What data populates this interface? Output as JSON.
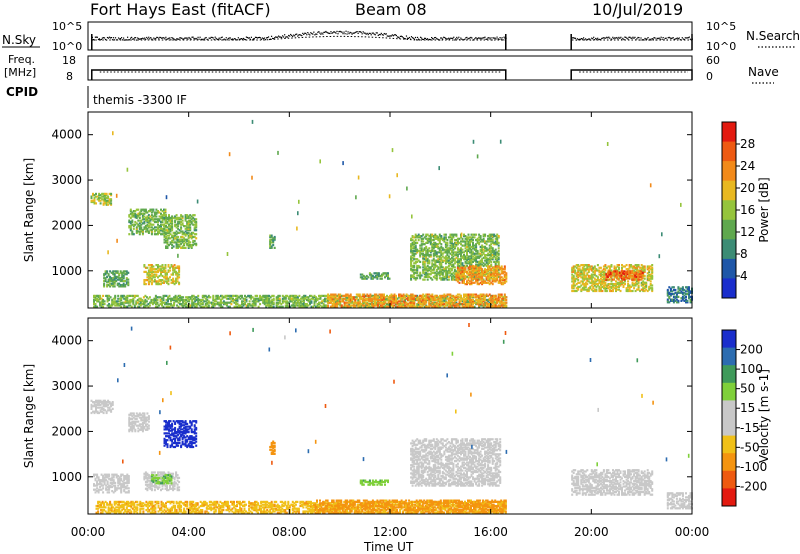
{
  "header": {
    "station": "Fort Hays East (fitACF)",
    "beam": "Beam 08",
    "date": "10/Jul/2019"
  },
  "panel_labels": {
    "nsky": "N.Sky",
    "freq_line1": "Freq.",
    "freq_line2": "[MHz]",
    "cpid": "CPID",
    "nsearch": "N.Search",
    "nave": "Nave",
    "mode": "themis -3300 IF"
  },
  "colors": {
    "power_scale": [
      "#1a2ecc",
      "#1f57a8",
      "#3c8c75",
      "#5fa84e",
      "#95c43c",
      "#e8b820",
      "#f28a1a",
      "#ee5a12",
      "#e31a10"
    ],
    "velocity_scale": [
      "#1a2ecc",
      "#2c6cb0",
      "#3f9a5a",
      "#7fd03a",
      "#c8c8c8",
      "#c8c8c8",
      "#f0c018",
      "#f49410",
      "#ee5a10",
      "#e31a10"
    ],
    "frame": "#000000"
  },
  "chart_data": [
    {
      "type": "line",
      "name": "noise-panel",
      "title": "",
      "ylabel": "N.Sky",
      "ylabel_right": "N.Search",
      "yticks": [
        "10^5",
        "10^0"
      ],
      "yticks_right": [
        "10^5",
        "10^0"
      ],
      "x_range_hours": [
        0,
        24
      ],
      "data_gaps_hours": [
        [
          16.6,
          19.2
        ]
      ]
    },
    {
      "type": "line",
      "name": "freq-nave-panel",
      "title": "",
      "ylabel": "Freq. [MHz]",
      "ylabel_right": "Nave",
      "yticks": [
        "18",
        "8"
      ],
      "yticks_right": [
        "60",
        "0"
      ],
      "x_range_hours": [
        0,
        24
      ],
      "data_gaps_hours": [
        [
          16.6,
          19.2
        ]
      ]
    },
    {
      "type": "heatmap",
      "name": "power",
      "ylabel": "Slant Range [km]",
      "colorbar_label": "Power [dB]",
      "colorbar_ticks": [
        "28",
        "24",
        "20",
        "16",
        "12",
        "8",
        "4"
      ],
      "colorbar_range": [
        0,
        32
      ],
      "yticks": [
        "4000",
        "3000",
        "2000",
        "1000"
      ],
      "ylim": [
        180,
        4500
      ],
      "x_range_hours": [
        0,
        24
      ],
      "regions": [
        {
          "t0": 0.1,
          "t1": 0.9,
          "r0": 2450,
          "r1": 2700,
          "v": 16
        },
        {
          "t0": 0.6,
          "t1": 1.6,
          "r0": 650,
          "r1": 1000,
          "v": 12
        },
        {
          "t0": 1.6,
          "t1": 3.1,
          "r0": 1800,
          "r1": 2350,
          "v": 14
        },
        {
          "t0": 2.2,
          "t1": 3.6,
          "r0": 700,
          "r1": 1150,
          "v": 18
        },
        {
          "t0": 3.0,
          "t1": 4.3,
          "r0": 1500,
          "r1": 2250,
          "v": 14
        },
        {
          "t0": 0.2,
          "t1": 16.6,
          "r0": 200,
          "r1": 450,
          "v": 14
        },
        {
          "t0": 9.5,
          "t1": 16.6,
          "r0": 200,
          "r1": 480,
          "v": 22
        },
        {
          "t0": 10.8,
          "t1": 12.0,
          "r0": 820,
          "r1": 950,
          "v": 12
        },
        {
          "t0": 12.8,
          "t1": 16.3,
          "r0": 800,
          "r1": 1800,
          "v": 14
        },
        {
          "t0": 14.6,
          "t1": 16.6,
          "r0": 700,
          "r1": 1100,
          "v": 22
        },
        {
          "t0": 19.2,
          "t1": 22.4,
          "r0": 550,
          "r1": 1150,
          "v": 18
        },
        {
          "t0": 20.5,
          "t1": 22.0,
          "r0": 800,
          "r1": 1000,
          "v": 26
        },
        {
          "t0": 23.0,
          "t1": 24.0,
          "r0": 300,
          "r1": 650,
          "v": 8
        },
        {
          "t0": 7.2,
          "t1": 7.4,
          "r0": 1500,
          "r1": 1800,
          "v": 12
        }
      ]
    },
    {
      "type": "heatmap",
      "name": "velocity",
      "ylabel": "Slant Range [km]",
      "colorbar_label": "Velocity [m s-1]",
      "colorbar_ticks": [
        "200",
        "100",
        "50",
        "15",
        "-15",
        "-50",
        "-100",
        "-200"
      ],
      "colorbar_range": [
        -250,
        250
      ],
      "yticks": [
        "4000",
        "3000",
        "2000",
        "1000"
      ],
      "ylim": [
        180,
        4500
      ],
      "x_range_hours": [
        0,
        24
      ],
      "regions": [
        {
          "t0": 0.1,
          "t1": 1.0,
          "r0": 2400,
          "r1": 2700,
          "v": 0
        },
        {
          "t0": 0.2,
          "t1": 1.6,
          "r0": 650,
          "r1": 1050,
          "v": 0
        },
        {
          "t0": 1.6,
          "t1": 2.4,
          "r0": 2000,
          "r1": 2400,
          "v": 0
        },
        {
          "t0": 3.0,
          "t1": 4.3,
          "r0": 1650,
          "r1": 2250,
          "v": 220
        },
        {
          "t0": 2.2,
          "t1": 3.6,
          "r0": 700,
          "r1": 1100,
          "v": 0
        },
        {
          "t0": 2.5,
          "t1": 3.3,
          "r0": 850,
          "r1": 1050,
          "v": 40
        },
        {
          "t0": 0.3,
          "t1": 16.6,
          "r0": 200,
          "r1": 460,
          "v": -40
        },
        {
          "t0": 9.0,
          "t1": 16.6,
          "r0": 200,
          "r1": 480,
          "v": -60
        },
        {
          "t0": 10.8,
          "t1": 11.9,
          "r0": 820,
          "r1": 930,
          "v": 40
        },
        {
          "t0": 12.8,
          "t1": 16.4,
          "r0": 800,
          "r1": 1850,
          "v": 0
        },
        {
          "t0": 7.2,
          "t1": 7.4,
          "r0": 1500,
          "r1": 1800,
          "v": -80
        },
        {
          "t0": 19.2,
          "t1": 22.4,
          "r0": 600,
          "r1": 1150,
          "v": 0
        },
        {
          "t0": 23.0,
          "t1": 24.0,
          "r0": 300,
          "r1": 650,
          "v": 0
        }
      ]
    }
  ],
  "xaxis": {
    "label": "Time UT",
    "ticks": [
      "00:00",
      "04:00",
      "08:00",
      "12:00",
      "16:00",
      "20:00",
      "00:00"
    ],
    "tick_hours": [
      0,
      4,
      8,
      12,
      16,
      20,
      24
    ]
  }
}
